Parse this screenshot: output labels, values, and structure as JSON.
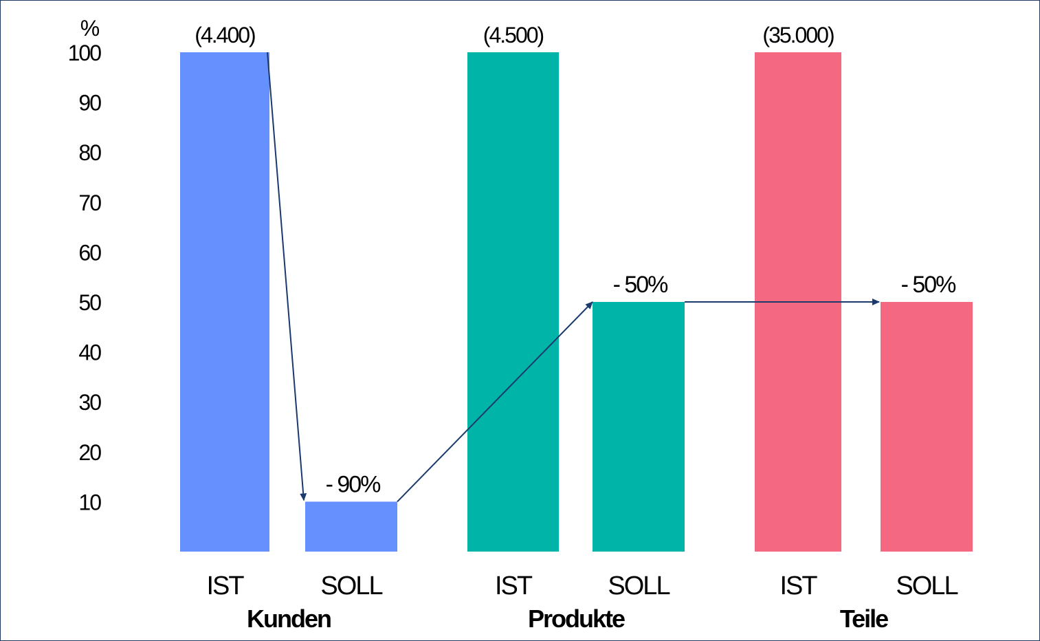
{
  "chart_data": {
    "type": "bar",
    "ylabel": "%",
    "ylim": [
      0,
      100
    ],
    "yticks": [
      10,
      20,
      30,
      40,
      50,
      60,
      70,
      80,
      90,
      100
    ],
    "grid": false,
    "groups": [
      {
        "name": "Kunden",
        "color": "#6690fe",
        "bars": [
          {
            "label": "IST",
            "value": 100,
            "annotation": "(4.400)"
          },
          {
            "label": "SOLL",
            "value": 10,
            "annotation": "- 90%"
          }
        ]
      },
      {
        "name": "Produkte",
        "color": "#00b5a7",
        "bars": [
          {
            "label": "IST",
            "value": 100,
            "annotation": "(4.500)"
          },
          {
            "label": "SOLL",
            "value": 50,
            "annotation": "- 50%"
          }
        ]
      },
      {
        "name": "Teile",
        "color": "#f56882",
        "bars": [
          {
            "label": "IST",
            "value": 100,
            "annotation": "(35.000)"
          },
          {
            "label": "SOLL",
            "value": 50,
            "annotation": "- 50%"
          }
        ]
      }
    ],
    "arrow_color": "#1a3a6e"
  }
}
